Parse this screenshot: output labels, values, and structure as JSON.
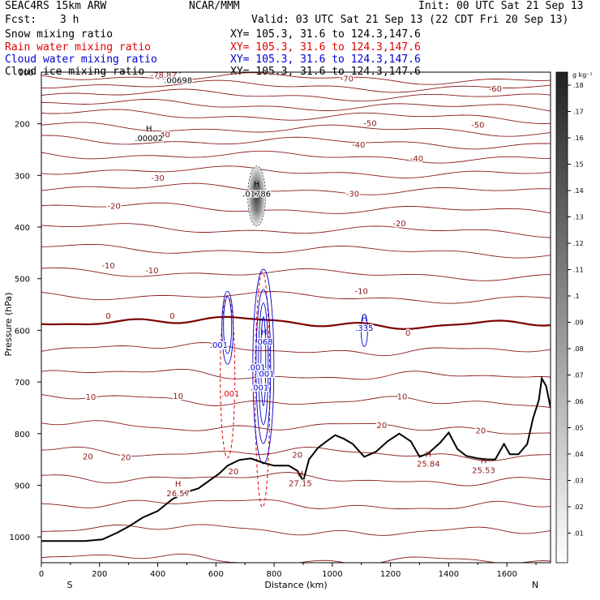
{
  "header": {
    "model": "SEAC4RS 15km ARW",
    "org": "NCAR/MMM",
    "init": "Init: 00 UTC Sat 21 Sep 13",
    "fcst_label": "Fcst:",
    "fcst_value": "3 h",
    "valid": "Valid: 03 UTC Sat 21 Sep 13 (22 CDT Fri 20 Sep 13)"
  },
  "fields": [
    {
      "name": "Snow mixing ratio",
      "xy": "XY= 105.3, 31.6 to 124.3,147.6",
      "color": "#000000"
    },
    {
      "name": "Rain water mixing ratio",
      "xy": "XY= 105.3, 31.6 to 124.3,147.6",
      "color": "#e00000"
    },
    {
      "name": "Cloud water mixing ratio",
      "xy": "XY= 105.3, 31.6 to 124.3,147.6",
      "color": "#0000d0"
    },
    {
      "name": "Cloud ice mixing ratio",
      "xy": "XY= 105.3, 31.6 to 124.3,147.6",
      "color": "#000000"
    }
  ],
  "colors": {
    "temperature": "#8b1a1a",
    "zero_isotherm": "#7a0000",
    "rain": "#e00000",
    "cloud_water": "#0000d0",
    "terrain": "#000000"
  },
  "chart_data": {
    "type": "cross-section",
    "xlabel": "Distance (km)",
    "ylabel": "Pressure (hPa)",
    "xlim": [
      0,
      1750
    ],
    "ylim": [
      1050,
      100
    ],
    "x_ticks": [
      "0",
      "200",
      "400",
      "600",
      "800",
      "1000",
      "1200",
      "1400",
      "1600"
    ],
    "y_ticks": [
      "200",
      "300",
      "400",
      "500",
      "600",
      "700",
      "800",
      "900",
      "1000"
    ],
    "y_top_label": "100",
    "end_labels": {
      "left": "S",
      "right": "N"
    },
    "colorbar": {
      "unit": "g kg⁻¹",
      "ticks": [
        ".01",
        ".02",
        ".03",
        ".04",
        ".05",
        ".06",
        ".07",
        ".08",
        ".09",
        ".1",
        ".11",
        ".12",
        ".13",
        ".14",
        ".15",
        ".16",
        ".17",
        ".18"
      ]
    },
    "isotherm_values": [
      -80,
      -70,
      -60,
      -50,
      -40,
      -30,
      -20,
      -10,
      0,
      10,
      20
    ],
    "isotherm_labels": [
      {
        "text": "-78.82",
        "x": 420,
        "p": 106
      },
      {
        "text": "-70",
        "x": 1050,
        "p": 113
      },
      {
        "text": "-60",
        "x": 1560,
        "p": 133
      },
      {
        "text": "-50",
        "x": 1130,
        "p": 200
      },
      {
        "text": "-50",
        "x": 1500,
        "p": 203
      },
      {
        "text": "-40",
        "x": 420,
        "p": 222
      },
      {
        "text": "-40",
        "x": 1090,
        "p": 241
      },
      {
        "text": "-40",
        "x": 1290,
        "p": 268
      },
      {
        "text": "-30",
        "x": 400,
        "p": 306
      },
      {
        "text": "-30",
        "x": 1070,
        "p": 336
      },
      {
        "text": "-20",
        "x": 250,
        "p": 360
      },
      {
        "text": "-20",
        "x": 1230,
        "p": 394
      },
      {
        "text": "-10",
        "x": 230,
        "p": 475
      },
      {
        "text": "-10",
        "x": 380,
        "p": 485
      },
      {
        "text": "-10",
        "x": 1100,
        "p": 525
      },
      {
        "text": "0",
        "x": 230,
        "p": 573
      },
      {
        "text": "0",
        "x": 450,
        "p": 573
      },
      {
        "text": "0",
        "x": 1260,
        "p": 606
      },
      {
        "text": "10",
        "x": 170,
        "p": 730
      },
      {
        "text": "10",
        "x": 470,
        "p": 728
      },
      {
        "text": "10",
        "x": 1240,
        "p": 729
      },
      {
        "text": "20",
        "x": 160,
        "p": 845
      },
      {
        "text": "20",
        "x": 290,
        "p": 847
      },
      {
        "text": "20",
        "x": 660,
        "p": 874
      },
      {
        "text": "20",
        "x": 880,
        "p": 842
      },
      {
        "text": "20",
        "x": 1170,
        "p": 785
      },
      {
        "text": "20",
        "x": 1510,
        "p": 795
      }
    ],
    "extrema": [
      {
        "type": "H",
        "value": ".00698",
        "x": 470,
        "p": 115,
        "color": "#000000"
      },
      {
        "type": "H",
        "value": ".00002",
        "x": 370,
        "p": 227,
        "color": "#000000"
      },
      {
        "type": "H",
        "value": ".01786",
        "x": 740,
        "p": 335,
        "color": "#000000"
      },
      {
        "type": "H",
        "value": ".068",
        "x": 765,
        "p": 621,
        "color": "#0000d0"
      },
      {
        "type": "H",
        "value": ".335",
        "x": 1110,
        "p": 595,
        "color": "#0000d0"
      },
      {
        "type": "H",
        "value": "26.57",
        "x": 470,
        "p": 915,
        "color": "#8b1a1a"
      },
      {
        "type": "H",
        "value": "27.15",
        "x": 890,
        "p": 895,
        "color": "#8b1a1a"
      },
      {
        "type": "H",
        "value": "25.84",
        "x": 1330,
        "p": 858,
        "color": "#8b1a1a"
      },
      {
        "type": "H",
        "value": "25.53",
        "x": 1520,
        "p": 870,
        "color": "#8b1a1a"
      }
    ],
    "contour_labels": [
      {
        "text": ".001",
        "x": 610,
        "p": 629,
        "color": "#0000d0"
      },
      {
        "text": ".001",
        "x": 740,
        "p": 672,
        "color": "#0000d0"
      },
      {
        "text": ".001",
        "x": 770,
        "p": 685,
        "color": "#0000d0"
      },
      {
        "text": ".001",
        "x": 750,
        "p": 712,
        "color": "#0000d0"
      },
      {
        "text": ".001",
        "x": 650,
        "p": 723,
        "color": "#e00000"
      }
    ],
    "terrain": [
      [
        0,
        1008
      ],
      [
        150,
        1008
      ],
      [
        210,
        1005
      ],
      [
        260,
        992
      ],
      [
        300,
        980
      ],
      [
        350,
        962
      ],
      [
        400,
        950
      ],
      [
        450,
        927
      ],
      [
        500,
        913
      ],
      [
        540,
        906
      ],
      [
        580,
        890
      ],
      [
        610,
        878
      ],
      [
        640,
        862
      ],
      [
        680,
        851
      ],
      [
        720,
        848
      ],
      [
        760,
        856
      ],
      [
        800,
        862
      ],
      [
        850,
        862
      ],
      [
        880,
        872
      ],
      [
        900,
        892
      ],
      [
        920,
        850
      ],
      [
        950,
        828
      ],
      [
        980,
        815
      ],
      [
        1010,
        803
      ],
      [
        1040,
        810
      ],
      [
        1070,
        820
      ],
      [
        1110,
        845
      ],
      [
        1150,
        835
      ],
      [
        1190,
        815
      ],
      [
        1230,
        800
      ],
      [
        1270,
        815
      ],
      [
        1300,
        845
      ],
      [
        1330,
        838
      ],
      [
        1370,
        818
      ],
      [
        1400,
        798
      ],
      [
        1430,
        830
      ],
      [
        1460,
        843
      ],
      [
        1500,
        848
      ],
      [
        1530,
        850
      ],
      [
        1560,
        850
      ],
      [
        1590,
        820
      ],
      [
        1610,
        840
      ],
      [
        1640,
        840
      ],
      [
        1670,
        820
      ],
      [
        1690,
        770
      ],
      [
        1710,
        735
      ],
      [
        1720,
        693
      ],
      [
        1735,
        708
      ],
      [
        1750,
        750
      ]
    ],
    "snow_max": 0.18,
    "cloud_water_max": 0.335,
    "rain_contour": 0.001
  }
}
